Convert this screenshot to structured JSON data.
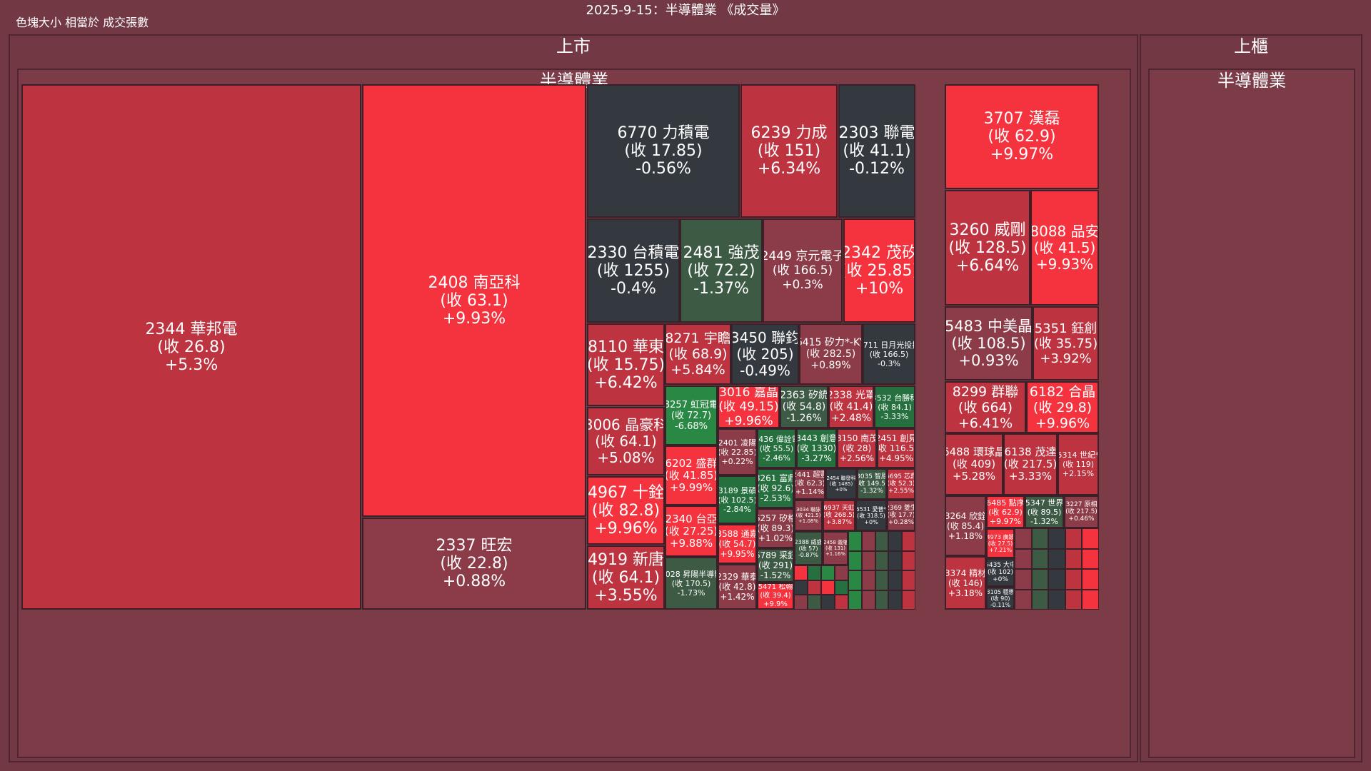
{
  "title": "2025-9-15：半導體業 《成交量》",
  "size_note": "色塊大小 相當於 成交張數",
  "colors": {
    "up_strong": "#f5333f",
    "up": "#bd3440",
    "up_weak": "#8c3c48",
    "flat": "#34393f",
    "down_weak": "#3d5a45",
    "down": "#25703e",
    "down_strong": "#2a8845"
  },
  "chart_data": {
    "type": "treemap",
    "size_metric": "成交張數",
    "markets": [
      {
        "name": "上市",
        "sectors": [
          {
            "name": "半導體業",
            "stocks": [
              {
                "label": "2344 華邦電",
                "close": "(收 26.8)",
                "change": "+5.3%"
              },
              {
                "label": "2408 南亞科",
                "close": "(收 63.1)",
                "change": "+9.93%"
              },
              {
                "label": "2337 旺宏",
                "close": "(收 22.8)",
                "change": "+0.88%"
              },
              {
                "label": "6770 力積電",
                "close": "(收 17.85)",
                "change": "-0.56%"
              },
              {
                "label": "6239 力成",
                "close": "(收 151)",
                "change": "+6.34%"
              },
              {
                "label": "2303 聯電",
                "close": "(收 41.1)",
                "change": "-0.12%"
              },
              {
                "label": "2330 台積電",
                "close": "(收 1255)",
                "change": "-0.4%"
              },
              {
                "label": "2481 強茂",
                "close": "(收 72.2)",
                "change": "-1.37%"
              },
              {
                "label": "2449 京元電子",
                "close": "(收 166.5)",
                "change": "+0.3%"
              },
              {
                "label": "2342 茂矽",
                "close": "(收 25.85)",
                "change": "+10%"
              },
              {
                "label": "8110 華東",
                "close": "(收 15.75)",
                "change": "+6.42%"
              },
              {
                "label": "8271 宇瞻",
                "close": "(收 68.9)",
                "change": "+5.84%"
              },
              {
                "label": "3450 聯鈞",
                "close": "(收 205)",
                "change": "-0.49%"
              },
              {
                "label": "6415 矽力*-KY",
                "close": "(收 282.5)",
                "change": "+0.89%"
              },
              {
                "label": "3711 日月光投控",
                "close": "(收 166.5)",
                "change": "-0.3%"
              },
              {
                "label": "3006 晶豪科",
                "close": "(收 64.1)",
                "change": "+5.08%"
              },
              {
                "label": "4967 十銓",
                "close": "(收 82.8)",
                "change": "+9.96%"
              },
              {
                "label": "4919 新唐",
                "close": "(收 64.1)",
                "change": "+3.55%"
              },
              {
                "label": "3257 虹冠電",
                "close": "(收 72.7)",
                "change": "-6.68%"
              },
              {
                "label": "6202 盛群",
                "close": "(收 41.85)",
                "change": "+9.99%"
              },
              {
                "label": "2340 台亞",
                "close": "(收 27.25)",
                "change": "+9.88%"
              },
              {
                "label": "8028 昇陽半導體",
                "close": "(收 170.5)",
                "change": "-1.73%"
              },
              {
                "label": "3016 嘉晶",
                "close": "(收 49.15)",
                "change": "+9.96%"
              },
              {
                "label": "2363 矽統",
                "close": "(收 54.8)",
                "change": "-1.26%"
              },
              {
                "label": "2338 光罩",
                "close": "(收 41.4)",
                "change": "+2.48%"
              },
              {
                "label": "3532 台勝科",
                "close": "(收 84.1)",
                "change": "-3.33%"
              },
              {
                "label": "2401 凌陽",
                "close": "(收 22.85)",
                "change": "+0.22%"
              },
              {
                "label": "2436 偉詮電",
                "close": "(收 55.5)",
                "change": "-2.46%"
              },
              {
                "label": "3443 創意",
                "close": "(收 1330)",
                "change": "-3.27%"
              },
              {
                "label": "8150 南茂",
                "close": "(收 28)",
                "change": "+2.56%"
              },
              {
                "label": "2451 創見",
                "close": "(收 116.5)",
                "change": "+4.95%"
              },
              {
                "label": "3189 景碩",
                "close": "(收 102.5)",
                "change": "-2.84%"
              },
              {
                "label": "8261 富鼎",
                "close": "(收 92.6)",
                "change": "-2.53%"
              },
              {
                "label": "2441 超豐",
                "close": "(收 62.3)",
                "change": "+1.14%"
              },
              {
                "label": "2454 聯發科",
                "close": "(收 1485)",
                "change": "+0%"
              },
              {
                "label": "3035 智原",
                "close": "(收 149.5)",
                "change": "-1.32%"
              },
              {
                "label": "6695 芯鼎",
                "close": "(收 52.3)",
                "change": "+2.55%"
              },
              {
                "label": "6257 矽格",
                "close": "(收 89.3)",
                "change": "+1.02%"
              },
              {
                "label": "3034 聯詠",
                "close": "(收 421.5)",
                "change": "+1.08%"
              },
              {
                "label": "6937 天虹",
                "close": "(收 268.5)",
                "change": "+3.87%"
              },
              {
                "label": "6531 愛普*",
                "close": "(收 318.5)",
                "change": "+0%"
              },
              {
                "label": "2369 菱生",
                "close": "(收 17.7)",
                "change": "+0.28%"
              },
              {
                "label": "3588 通嘉",
                "close": "(收 54.7)",
                "change": "+9.95%"
              },
              {
                "label": "6789 采鈺",
                "close": "(收 291)",
                "change": "-1.52%"
              },
              {
                "label": "2388 威盛",
                "close": "(收 57)",
                "change": "-0.87%"
              },
              {
                "label": "2329 華泰",
                "close": "(收 42.8)",
                "change": "+1.42%"
              },
              {
                "label": "5471 松翰",
                "close": "(收 39.4)",
                "change": "+9.9%"
              },
              {
                "label": "2458 義隆",
                "close": "(收 131)",
                "change": "+1.16%"
              }
            ]
          }
        ]
      },
      {
        "name": "上櫃",
        "sectors": [
          {
            "name": "半導體業",
            "stocks": [
              {
                "label": "3707 漢磊",
                "close": "(收 62.9)",
                "change": "+9.97%"
              },
              {
                "label": "3260 威剛",
                "close": "(收 128.5)",
                "change": "+6.64%"
              },
              {
                "label": "8088 品安",
                "close": "(收 41.5)",
                "change": "+9.93%"
              },
              {
                "label": "5483 中美晶",
                "close": "(收 108.5)",
                "change": "+0.93%"
              },
              {
                "label": "5351 鈺創",
                "close": "(收 35.75)",
                "change": "+3.92%"
              },
              {
                "label": "8299 群聯",
                "close": "(收 664)",
                "change": "+6.41%"
              },
              {
                "label": "6182 合晶",
                "close": "(收 29.8)",
                "change": "+9.96%"
              },
              {
                "label": "6488 環球晶",
                "close": "(收 409)",
                "change": "+5.28%"
              },
              {
                "label": "6138 茂達",
                "close": "(收 217.5)",
                "change": "+3.33%"
              },
              {
                "label": "5314 世紀*",
                "close": "(收 119)",
                "change": "+2.15%"
              },
              {
                "label": "3264 欣銓",
                "close": "(收 85.4)",
                "change": "+1.18%"
              },
              {
                "label": "6485 點序",
                "close": "(收 62.9)",
                "change": "+9.97%"
              },
              {
                "label": "5347 世界",
                "close": "(收 89.5)",
                "change": "-1.32%"
              },
              {
                "label": "3227 原相",
                "close": "(收 217.5)",
                "change": "+0.46%"
              },
              {
                "label": "4973 廣穎",
                "close": "(收 27.5)",
                "change": "+7.21%"
              },
              {
                "label": "3374 精材",
                "close": "(收 146)",
                "change": "+3.18%"
              },
              {
                "label": "6435 大中",
                "close": "(收 102)",
                "change": "+0%"
              },
              {
                "label": "3105 穩懋",
                "close": "(收 90)",
                "change": "-0.11%"
              }
            ]
          }
        ]
      }
    ]
  }
}
